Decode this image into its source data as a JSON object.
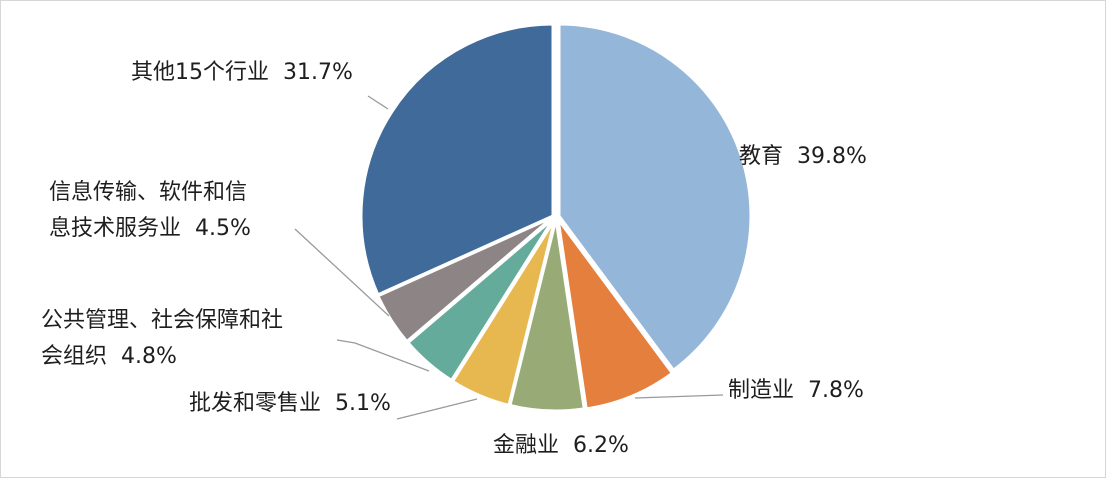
{
  "chart_data": {
    "type": "pie",
    "title": "",
    "slices": [
      {
        "label": "教育",
        "label_lines": [
          "教育"
        ],
        "value": 39.8,
        "value_label": "39.8%",
        "color": "#94b6d9"
      },
      {
        "label": "制造业",
        "label_lines": [
          "制造业"
        ],
        "value": 7.8,
        "value_label": "7.8%",
        "color": "#e47f3d"
      },
      {
        "label": "金融业",
        "label_lines": [
          "金融业"
        ],
        "value": 6.2,
        "value_label": "6.2%",
        "color": "#98ab76"
      },
      {
        "label": "批发和零售业",
        "label_lines": [
          "批发和零售业"
        ],
        "value": 5.1,
        "value_label": "5.1%",
        "color": "#e7b84f"
      },
      {
        "label": "公共管理、社会保障和社会组织",
        "label_lines": [
          "公共管理、社会保障和社",
          "会组织"
        ],
        "value": 4.8,
        "value_label": "4.8%",
        "color": "#65ab9c"
      },
      {
        "label": "信息传输、软件和信息技术服务业",
        "label_lines": [
          "信息传输、软件和信",
          "息技术服务业"
        ],
        "value": 4.5,
        "value_label": "4.5%",
        "color": "#8c8485"
      },
      {
        "label": "其他15个行业",
        "label_lines": [
          "其他15个行业"
        ],
        "value": 31.7,
        "value_label": "31.7%",
        "color": "#3f6a99"
      }
    ],
    "start_angle_deg": 0,
    "direction": "clockwise",
    "legend": "none",
    "data_labels": "outside-with-leader-lines"
  }
}
